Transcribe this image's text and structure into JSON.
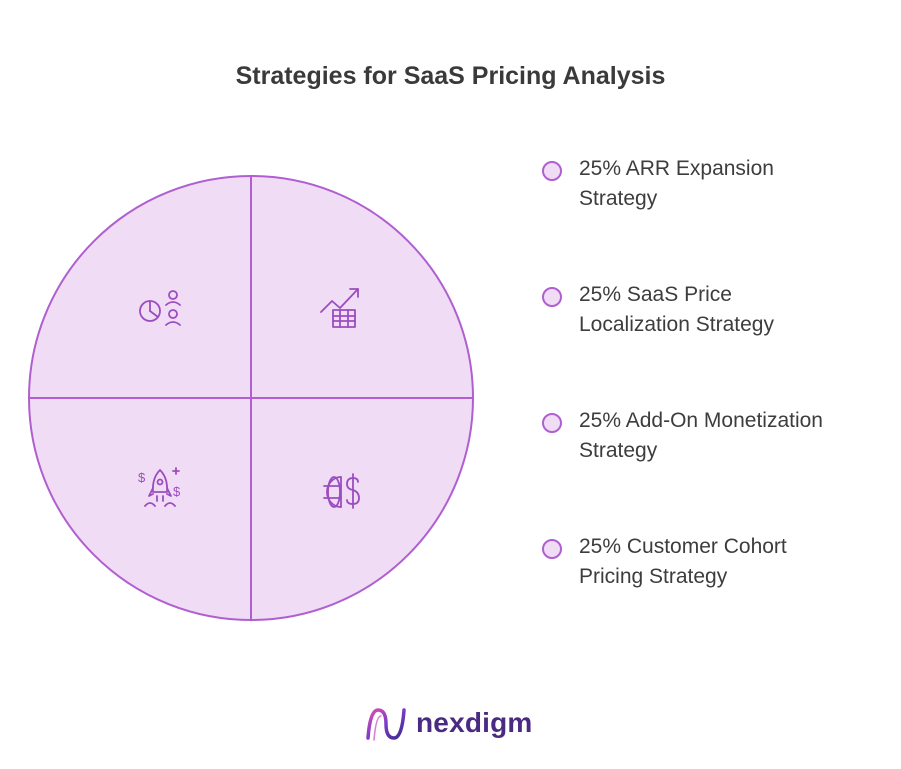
{
  "title": "Strategies for SaaS Pricing Analysis",
  "colors": {
    "slice_fill": "#f1dcf6",
    "slice_stroke": "#b05fd0",
    "icon_stroke": "#9b4dc0",
    "title": "#3a3a3a",
    "logo": "#4b2a82"
  },
  "chart_data": {
    "type": "pie",
    "title": "Strategies for SaaS Pricing Analysis",
    "unit": "%",
    "legend_position": "right",
    "slices": [
      {
        "label": "25% ARR Expansion Strategy",
        "value": 25,
        "icon": "analytics-people-icon"
      },
      {
        "label": "25% SaaS Price Localization Strategy",
        "value": 25,
        "icon": "growth-chart-table-icon"
      },
      {
        "label": "25% Add-On Monetization Strategy",
        "value": 25,
        "icon": "rocket-money-icon"
      },
      {
        "label": "25% Customer Cohort Pricing Strategy",
        "value": 25,
        "icon": "globe-dollar-icon"
      }
    ]
  },
  "legend": {
    "items": [
      {
        "line1": "25% ARR Expansion",
        "line2": "Strategy"
      },
      {
        "line1": "25% SaaS Price",
        "line2": "Localization Strategy"
      },
      {
        "line1": "25% Add-On Monetization",
        "line2": "Strategy"
      },
      {
        "line1": "25% Customer Cohort",
        "line2": "Pricing Strategy"
      }
    ]
  },
  "logo": {
    "text": "nexdigm",
    "icon": "wave-logo-icon"
  }
}
